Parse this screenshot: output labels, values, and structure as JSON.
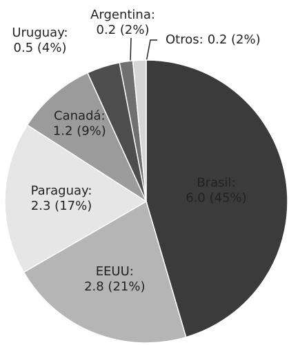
{
  "chart_data": {
    "type": "pie",
    "categories": [
      "Brasil:",
      "EEUU:",
      "Paraguay:",
      "Canadá:",
      "Uruguay:",
      "Argentina:",
      "Otros:"
    ],
    "values": [
      6.0,
      2.8,
      2.3,
      1.2,
      0.5,
      0.2,
      0.2
    ],
    "value_labels": [
      "6.0 (45%)",
      "2.8 (21%)",
      "2.3 (17%)",
      "1.2 (9%)",
      "0.5 (4%)",
      "0.2 (2%)",
      "0.2 (2%)"
    ],
    "colors": [
      "#3b3b3b",
      "#b5b5b5",
      "#e6e6e6",
      "#9b9b9b",
      "#4d4d4d",
      "#707070",
      "#d6d6d6"
    ]
  }
}
